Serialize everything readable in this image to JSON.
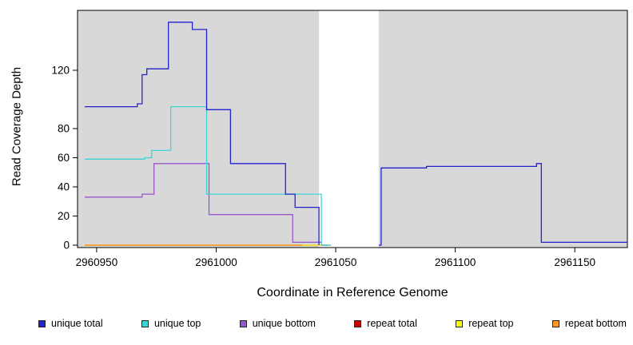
{
  "chart_data": {
    "type": "line",
    "title": "",
    "xlabel": "Coordinate in Reference Genome",
    "ylabel": "Read Coverage Depth",
    "xlim": [
      2960942,
      2961172
    ],
    "ylim": [
      0,
      161
    ],
    "x_ticks": [
      2960950,
      2961000,
      2961050,
      2961100,
      2961150
    ],
    "y_ticks": [
      0,
      20,
      40,
      60,
      80,
      120
    ],
    "grid": false,
    "legend_position": "bottom",
    "plot_background": "#ffffff",
    "shaded_color": "#d8d8d8",
    "shaded_regions": [
      [
        2960942,
        2961043
      ],
      [
        2961068,
        2961172
      ]
    ],
    "series": [
      {
        "name": "repeat total",
        "color": "#cc0000",
        "segments": [
          [
            [
              2960945,
              0
            ],
            [
              2961047,
              0
            ]
          ]
        ]
      },
      {
        "name": "repeat top",
        "color": "#ffff00",
        "segments": [
          [
            [
              2960945,
              0
            ],
            [
              2961047,
              0
            ]
          ]
        ]
      },
      {
        "name": "repeat bottom",
        "color": "#ff9922",
        "segments": [
          [
            [
              2960945,
              0
            ],
            [
              2961036,
              0
            ]
          ]
        ]
      },
      {
        "name": "unique bottom",
        "color": "#9955cc",
        "segments": [
          [
            [
              2960945,
              33
            ],
            [
              2960969,
              35
            ],
            [
              2960974,
              56
            ],
            [
              2960997,
              21
            ],
            [
              2961032,
              2
            ],
            [
              2961044,
              0
            ],
            [
              2961048,
              0
            ]
          ]
        ]
      },
      {
        "name": "unique top",
        "color": "#3fd4d4",
        "segments": [
          [
            [
              2960945,
              59
            ],
            [
              2960970,
              60
            ],
            [
              2960973,
              65
            ],
            [
              2960981,
              95
            ],
            [
              2960996,
              35
            ],
            [
              2961044,
              0
            ],
            [
              2961048,
              0
            ]
          ]
        ]
      },
      {
        "name": "unique total",
        "color": "#2222cc",
        "segments": [
          [
            [
              2960945,
              95
            ],
            [
              2960967,
              97
            ],
            [
              2960969,
              117
            ],
            [
              2960971,
              121
            ],
            [
              2960980,
              153
            ],
            [
              2960990,
              148
            ],
            [
              2960996,
              93
            ],
            [
              2961006,
              56
            ],
            [
              2961029,
              35
            ],
            [
              2961033,
              26
            ],
            [
              2961043,
              0
            ]
          ],
          [
            [
              2961068,
              0
            ],
            [
              2961069,
              53
            ],
            [
              2961088,
              54
            ],
            [
              2961133,
              54
            ],
            [
              2961134,
              56
            ],
            [
              2961136,
              2
            ],
            [
              2961172,
              2
            ]
          ]
        ]
      }
    ],
    "legend": [
      {
        "label": "unique total",
        "color": "#2222cc"
      },
      {
        "label": "unique top",
        "color": "#3fd4d4"
      },
      {
        "label": "unique bottom",
        "color": "#9955cc"
      },
      {
        "label": "repeat total",
        "color": "#cc0000"
      },
      {
        "label": "repeat top",
        "color": "#ffff00"
      },
      {
        "label": "repeat bottom",
        "color": "#ff9922"
      }
    ]
  }
}
